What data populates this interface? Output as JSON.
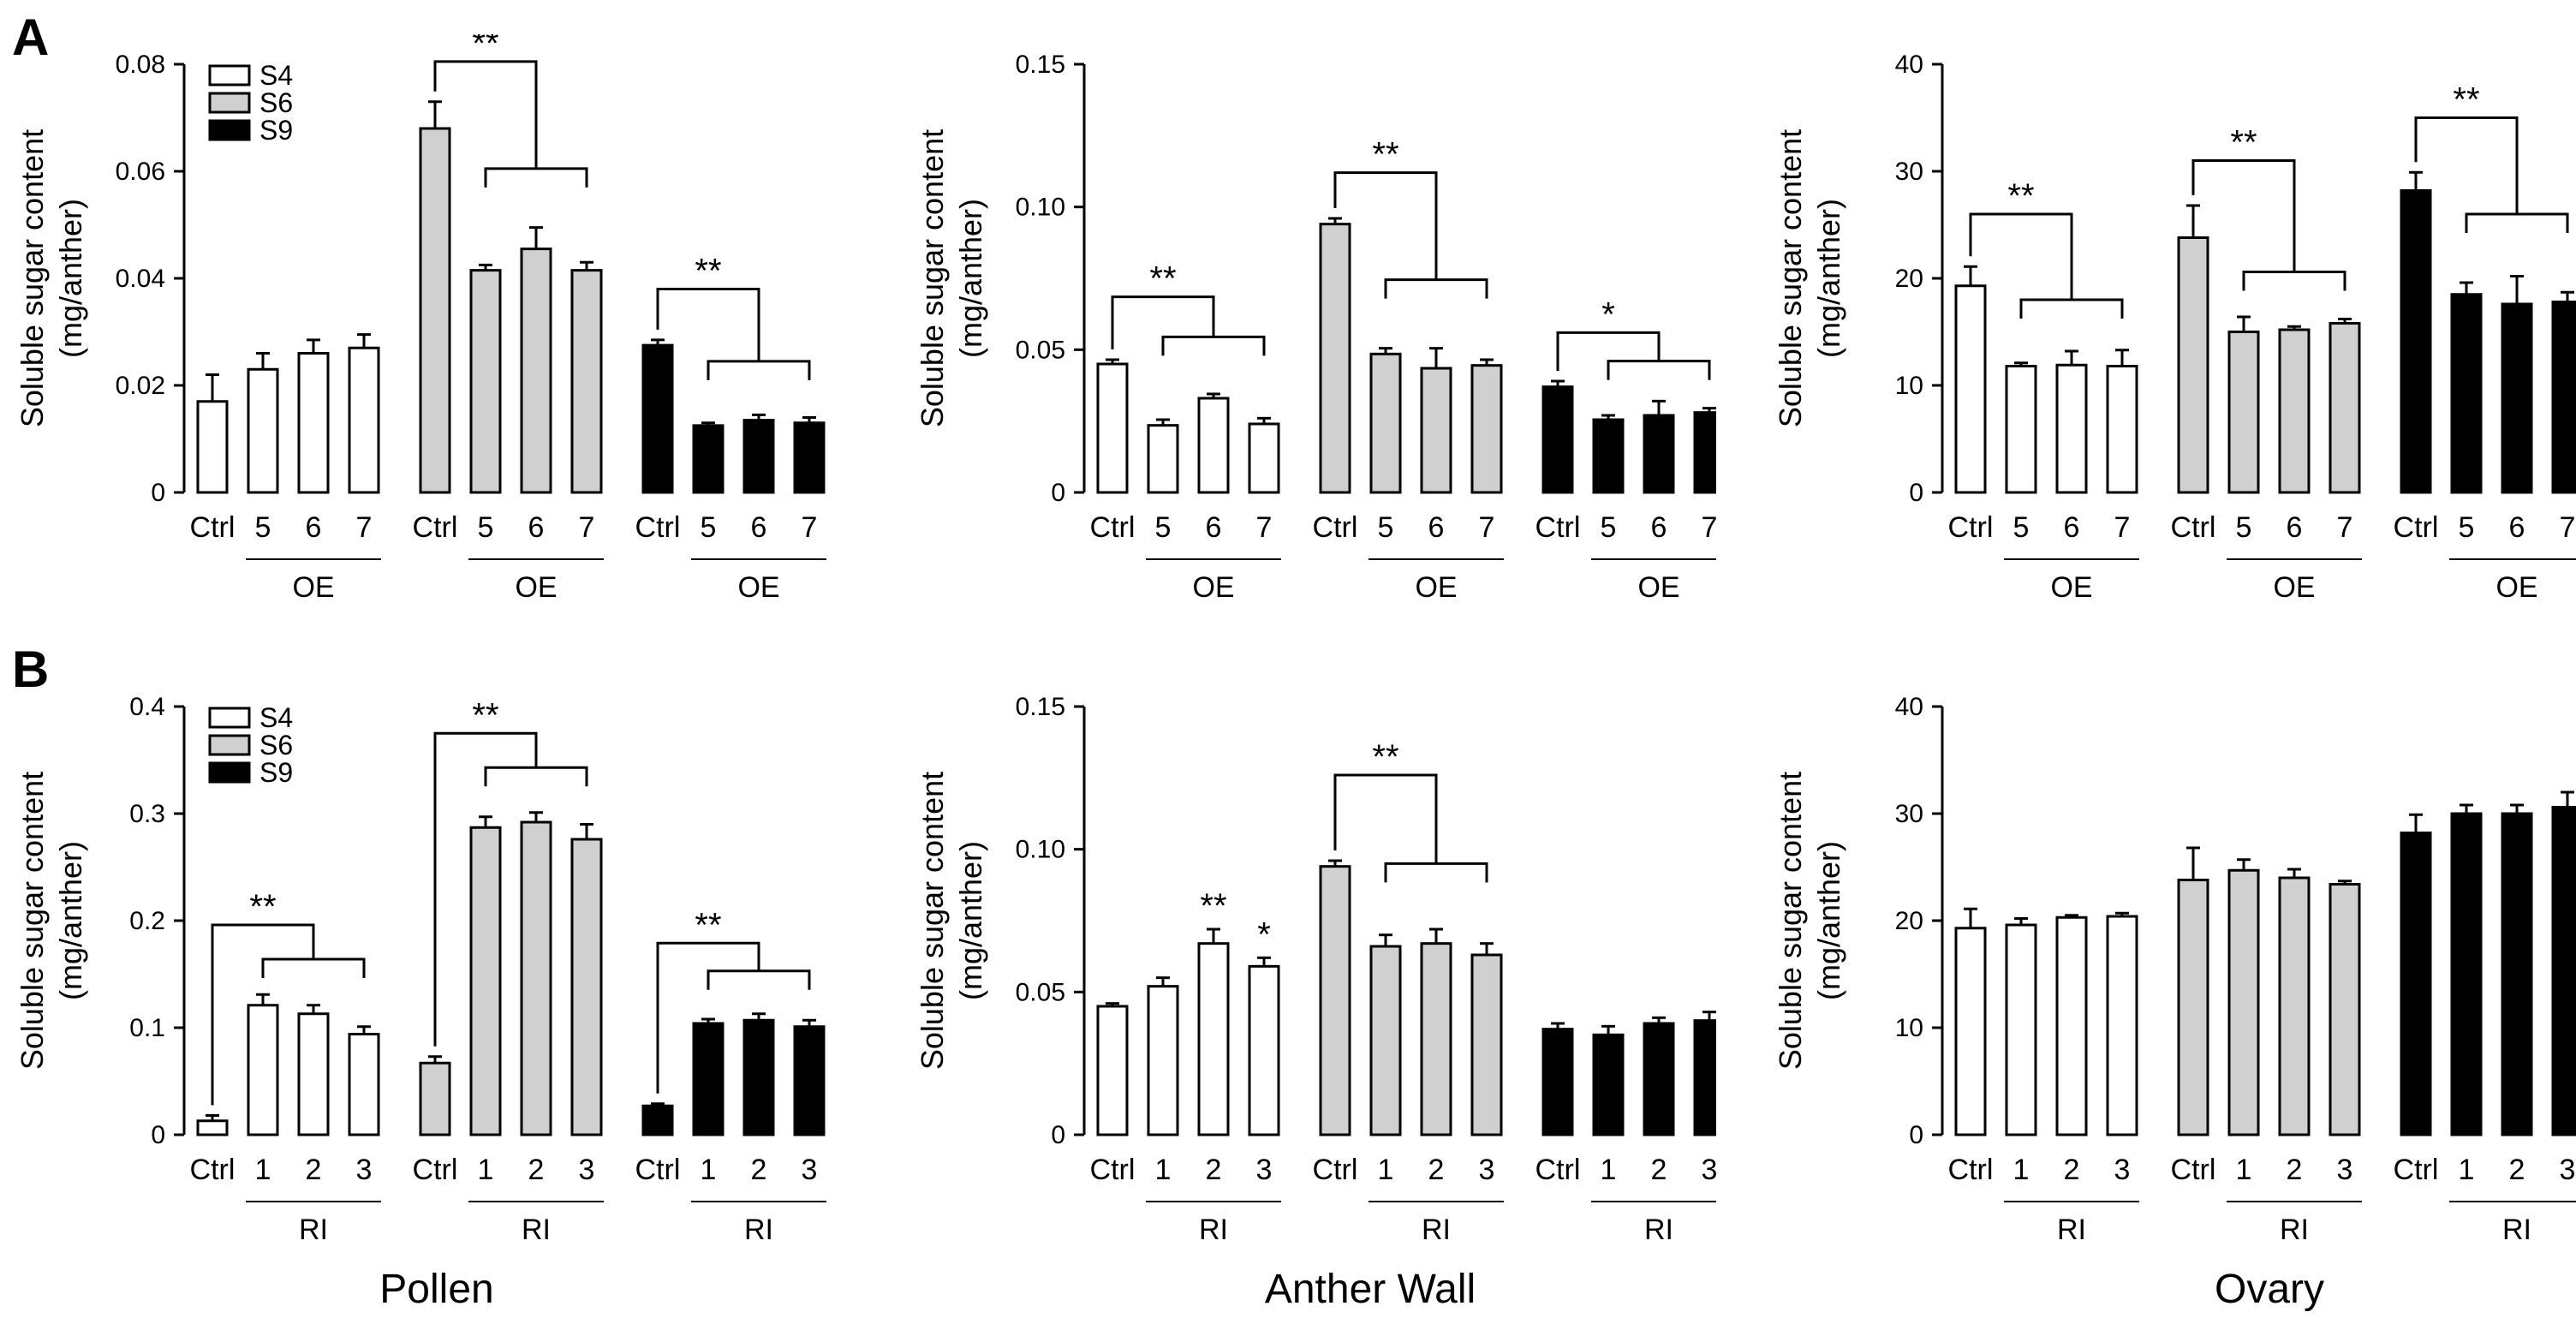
{
  "figure": {
    "panel_labels": [
      "A",
      "B"
    ],
    "tissue_labels": [
      "Pollen",
      "Anther Wall",
      "Ovary"
    ]
  },
  "colors": {
    "S4": "#ffffff",
    "S6": "#d0d0d0",
    "S9": "#000000",
    "stroke": "#000000"
  },
  "chart_data": [
    {
      "id": "A-pollen",
      "type": "bar",
      "panel": "A",
      "tissue": "Pollen",
      "ylabel": [
        "Soluble sugar content",
        "(mg/anther)"
      ],
      "ylim": [
        0,
        0.08
      ],
      "yticks": [
        "0",
        "0.02",
        "0.04",
        "0.06",
        "0.08"
      ],
      "legend": [
        "S4",
        "S6",
        "S9"
      ],
      "categories": [
        "Ctrl",
        "5",
        "6",
        "7"
      ],
      "group_label": "OE",
      "series": [
        {
          "name": "S4",
          "values": [
            0.017,
            0.023,
            0.026,
            0.027
          ],
          "errors": [
            0.005,
            0.003,
            0.0025,
            0.0025
          ]
        },
        {
          "name": "S6",
          "values": [
            0.068,
            0.0415,
            0.0455,
            0.0415
          ],
          "errors": [
            0.005,
            0.001,
            0.004,
            0.0015
          ]
        },
        {
          "name": "S9",
          "values": [
            0.0275,
            0.0125,
            0.0135,
            0.013
          ],
          "errors": [
            0.001,
            0.0005,
            0.001,
            0.001
          ]
        }
      ],
      "significance": [
        {
          "series": "S4",
          "label": ""
        },
        {
          "series": "S6",
          "label": "**",
          "y0": 0.0805,
          "y1": 0.0605
        },
        {
          "series": "S9",
          "label": "**",
          "y0": 0.038,
          "y1": 0.0245
        }
      ]
    },
    {
      "id": "A-antherwall",
      "type": "bar",
      "panel": "A",
      "tissue": "Anther Wall",
      "ylabel": [
        "Soluble sugar content",
        "(mg/anther)"
      ],
      "ylim": [
        0,
        0.15
      ],
      "yticks": [
        "0",
        "0.05",
        "0.10",
        "0.15"
      ],
      "categories": [
        "Ctrl",
        "5",
        "6",
        "7"
      ],
      "group_label": "OE",
      "series": [
        {
          "name": "S4",
          "values": [
            0.045,
            0.0235,
            0.033,
            0.024
          ],
          "errors": [
            0.0015,
            0.002,
            0.0015,
            0.002
          ]
        },
        {
          "name": "S6",
          "values": [
            0.094,
            0.0485,
            0.0435,
            0.0445
          ],
          "errors": [
            0.002,
            0.002,
            0.007,
            0.002
          ]
        },
        {
          "name": "S9",
          "values": [
            0.037,
            0.0255,
            0.027,
            0.028
          ],
          "errors": [
            0.002,
            0.0015,
            0.005,
            0.0015
          ]
        }
      ],
      "significance": [
        {
          "series": "S4",
          "label": "**",
          "y0": 0.0685,
          "y1": 0.0545
        },
        {
          "series": "S6",
          "label": "**",
          "y0": 0.112,
          "y1": 0.0745
        },
        {
          "series": "S9",
          "label": "*",
          "y0": 0.056,
          "y1": 0.046
        }
      ]
    },
    {
      "id": "A-ovary",
      "type": "bar",
      "panel": "A",
      "tissue": "Ovary",
      "ylabel": [
        "Soluble sugar content",
        "(mg/anther)"
      ],
      "ylim": [
        0,
        40
      ],
      "yticks": [
        "0",
        "10",
        "20",
        "30",
        "40"
      ],
      "categories": [
        "Ctrl",
        "5",
        "6",
        "7"
      ],
      "group_label": "OE",
      "series": [
        {
          "name": "S4",
          "values": [
            19.3,
            11.8,
            11.9,
            11.8
          ],
          "errors": [
            1.8,
            0.3,
            1.3,
            1.5
          ]
        },
        {
          "name": "S6",
          "values": [
            23.8,
            15.0,
            15.2,
            15.8
          ],
          "errors": [
            3.0,
            1.4,
            0.3,
            0.4
          ]
        },
        {
          "name": "S9",
          "values": [
            28.2,
            18.5,
            17.6,
            17.8
          ],
          "errors": [
            1.7,
            1.1,
            2.6,
            0.9
          ]
        }
      ],
      "significance": [
        {
          "series": "S4",
          "label": "**",
          "y0": 26.0,
          "y1": 18.0
        },
        {
          "series": "S6",
          "label": "**",
          "y0": 31.0,
          "y1": 20.6
        },
        {
          "series": "S9",
          "label": "**",
          "y0": 35.0,
          "y1": 26.0
        }
      ]
    },
    {
      "id": "B-pollen",
      "type": "bar",
      "panel": "B",
      "tissue": "Pollen",
      "ylabel": [
        "Soluble sugar content",
        "(mg/anther)"
      ],
      "ylim": [
        0,
        0.4
      ],
      "yticks": [
        "0",
        "0.1",
        "0.2",
        "0.3",
        "0.4"
      ],
      "legend": [
        "S4",
        "S6",
        "S9"
      ],
      "categories": [
        "Ctrl",
        "1",
        "2",
        "3"
      ],
      "group_label": "RI",
      "series": [
        {
          "name": "S4",
          "values": [
            0.013,
            0.121,
            0.113,
            0.094
          ],
          "errors": [
            0.005,
            0.01,
            0.008,
            0.007
          ]
        },
        {
          "name": "S6",
          "values": [
            0.067,
            0.287,
            0.292,
            0.276
          ],
          "errors": [
            0.006,
            0.01,
            0.009,
            0.014
          ]
        },
        {
          "name": "S9",
          "values": [
            0.027,
            0.104,
            0.107,
            0.101
          ],
          "errors": [
            0.002,
            0.004,
            0.006,
            0.006
          ]
        }
      ],
      "significance": [
        {
          "series": "S4",
          "label": "**",
          "y0": 0.196,
          "y1": 0.164
        },
        {
          "series": "S6",
          "label": "**",
          "y0": 0.375,
          "y1": 0.343
        },
        {
          "series": "S9",
          "label": "**",
          "y0": 0.179,
          "y1": 0.153
        }
      ]
    },
    {
      "id": "B-antherwall",
      "type": "bar",
      "panel": "B",
      "tissue": "Anther Wall",
      "ylabel": [
        "Soluble sugar content",
        "(mg/anther)"
      ],
      "ylim": [
        0,
        0.15
      ],
      "yticks": [
        "0",
        "0.05",
        "0.10",
        "0.15"
      ],
      "categories": [
        "Ctrl",
        "1",
        "2",
        "3"
      ],
      "group_label": "RI",
      "series": [
        {
          "name": "S4",
          "values": [
            0.045,
            0.052,
            0.067,
            0.059
          ],
          "errors": [
            0.001,
            0.003,
            0.005,
            0.003
          ]
        },
        {
          "name": "S6",
          "values": [
            0.094,
            0.066,
            0.067,
            0.063
          ],
          "errors": [
            0.002,
            0.004,
            0.005,
            0.004
          ]
        },
        {
          "name": "S9",
          "values": [
            0.037,
            0.035,
            0.039,
            0.04
          ],
          "errors": [
            0.002,
            0.003,
            0.002,
            0.003
          ]
        }
      ],
      "point_labels": [
        {
          "series": "S4",
          "index": 2,
          "label": "**"
        },
        {
          "series": "S4",
          "index": 3,
          "label": "*"
        }
      ],
      "significance": [
        {
          "series": "S6",
          "label": "**",
          "y0": 0.126,
          "y1": 0.095
        }
      ]
    },
    {
      "id": "B-ovary",
      "type": "bar",
      "panel": "B",
      "tissue": "Ovary",
      "ylabel": [
        "Soluble sugar content",
        "(mg/anther)"
      ],
      "ylim": [
        0,
        40
      ],
      "yticks": [
        "0",
        "10",
        "20",
        "30",
        "40"
      ],
      "categories": [
        "Ctrl",
        "1",
        "2",
        "3"
      ],
      "group_label": "RI",
      "series": [
        {
          "name": "S4",
          "values": [
            19.3,
            19.6,
            20.3,
            20.4
          ],
          "errors": [
            1.8,
            0.6,
            0.2,
            0.3
          ]
        },
        {
          "name": "S6",
          "values": [
            23.8,
            24.7,
            24.0,
            23.4
          ],
          "errors": [
            3.0,
            1.0,
            0.8,
            0.3
          ]
        },
        {
          "name": "S9",
          "values": [
            28.2,
            30.0,
            30.0,
            30.6
          ],
          "errors": [
            1.7,
            0.8,
            0.8,
            1.4
          ]
        }
      ],
      "significance": []
    }
  ]
}
